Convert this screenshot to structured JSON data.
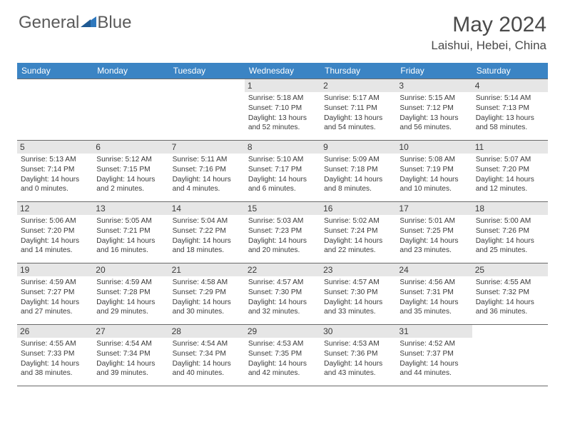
{
  "logo": {
    "text1": "General",
    "text2": "Blue"
  },
  "title": "May 2024",
  "location": "Laishui, Hebei, China",
  "daynames": [
    "Sunday",
    "Monday",
    "Tuesday",
    "Wednesday",
    "Thursday",
    "Friday",
    "Saturday"
  ],
  "colors": {
    "headerBg": "#3b84c4",
    "headerText": "#ffffff",
    "dayNumBg": "#e6e6e6",
    "text": "#3a3a3a",
    "logoAccent": "#2e78bd"
  },
  "grid": [
    [
      null,
      null,
      null,
      {
        "n": "1",
        "sr": "5:18 AM",
        "ss": "7:10 PM",
        "dl": "13 hours and 52 minutes."
      },
      {
        "n": "2",
        "sr": "5:17 AM",
        "ss": "7:11 PM",
        "dl": "13 hours and 54 minutes."
      },
      {
        "n": "3",
        "sr": "5:15 AM",
        "ss": "7:12 PM",
        "dl": "13 hours and 56 minutes."
      },
      {
        "n": "4",
        "sr": "5:14 AM",
        "ss": "7:13 PM",
        "dl": "13 hours and 58 minutes."
      }
    ],
    [
      {
        "n": "5",
        "sr": "5:13 AM",
        "ss": "7:14 PM",
        "dl": "14 hours and 0 minutes."
      },
      {
        "n": "6",
        "sr": "5:12 AM",
        "ss": "7:15 PM",
        "dl": "14 hours and 2 minutes."
      },
      {
        "n": "7",
        "sr": "5:11 AM",
        "ss": "7:16 PM",
        "dl": "14 hours and 4 minutes."
      },
      {
        "n": "8",
        "sr": "5:10 AM",
        "ss": "7:17 PM",
        "dl": "14 hours and 6 minutes."
      },
      {
        "n": "9",
        "sr": "5:09 AM",
        "ss": "7:18 PM",
        "dl": "14 hours and 8 minutes."
      },
      {
        "n": "10",
        "sr": "5:08 AM",
        "ss": "7:19 PM",
        "dl": "14 hours and 10 minutes."
      },
      {
        "n": "11",
        "sr": "5:07 AM",
        "ss": "7:20 PM",
        "dl": "14 hours and 12 minutes."
      }
    ],
    [
      {
        "n": "12",
        "sr": "5:06 AM",
        "ss": "7:20 PM",
        "dl": "14 hours and 14 minutes."
      },
      {
        "n": "13",
        "sr": "5:05 AM",
        "ss": "7:21 PM",
        "dl": "14 hours and 16 minutes."
      },
      {
        "n": "14",
        "sr": "5:04 AM",
        "ss": "7:22 PM",
        "dl": "14 hours and 18 minutes."
      },
      {
        "n": "15",
        "sr": "5:03 AM",
        "ss": "7:23 PM",
        "dl": "14 hours and 20 minutes."
      },
      {
        "n": "16",
        "sr": "5:02 AM",
        "ss": "7:24 PM",
        "dl": "14 hours and 22 minutes."
      },
      {
        "n": "17",
        "sr": "5:01 AM",
        "ss": "7:25 PM",
        "dl": "14 hours and 23 minutes."
      },
      {
        "n": "18",
        "sr": "5:00 AM",
        "ss": "7:26 PM",
        "dl": "14 hours and 25 minutes."
      }
    ],
    [
      {
        "n": "19",
        "sr": "4:59 AM",
        "ss": "7:27 PM",
        "dl": "14 hours and 27 minutes."
      },
      {
        "n": "20",
        "sr": "4:59 AM",
        "ss": "7:28 PM",
        "dl": "14 hours and 29 minutes."
      },
      {
        "n": "21",
        "sr": "4:58 AM",
        "ss": "7:29 PM",
        "dl": "14 hours and 30 minutes."
      },
      {
        "n": "22",
        "sr": "4:57 AM",
        "ss": "7:30 PM",
        "dl": "14 hours and 32 minutes."
      },
      {
        "n": "23",
        "sr": "4:57 AM",
        "ss": "7:30 PM",
        "dl": "14 hours and 33 minutes."
      },
      {
        "n": "24",
        "sr": "4:56 AM",
        "ss": "7:31 PM",
        "dl": "14 hours and 35 minutes."
      },
      {
        "n": "25",
        "sr": "4:55 AM",
        "ss": "7:32 PM",
        "dl": "14 hours and 36 minutes."
      }
    ],
    [
      {
        "n": "26",
        "sr": "4:55 AM",
        "ss": "7:33 PM",
        "dl": "14 hours and 38 minutes."
      },
      {
        "n": "27",
        "sr": "4:54 AM",
        "ss": "7:34 PM",
        "dl": "14 hours and 39 minutes."
      },
      {
        "n": "28",
        "sr": "4:54 AM",
        "ss": "7:34 PM",
        "dl": "14 hours and 40 minutes."
      },
      {
        "n": "29",
        "sr": "4:53 AM",
        "ss": "7:35 PM",
        "dl": "14 hours and 42 minutes."
      },
      {
        "n": "30",
        "sr": "4:53 AM",
        "ss": "7:36 PM",
        "dl": "14 hours and 43 minutes."
      },
      {
        "n": "31",
        "sr": "4:52 AM",
        "ss": "7:37 PM",
        "dl": "14 hours and 44 minutes."
      },
      null
    ]
  ],
  "labels": {
    "sunrise": "Sunrise: ",
    "sunset": "Sunset: ",
    "daylight": "Daylight: "
  }
}
